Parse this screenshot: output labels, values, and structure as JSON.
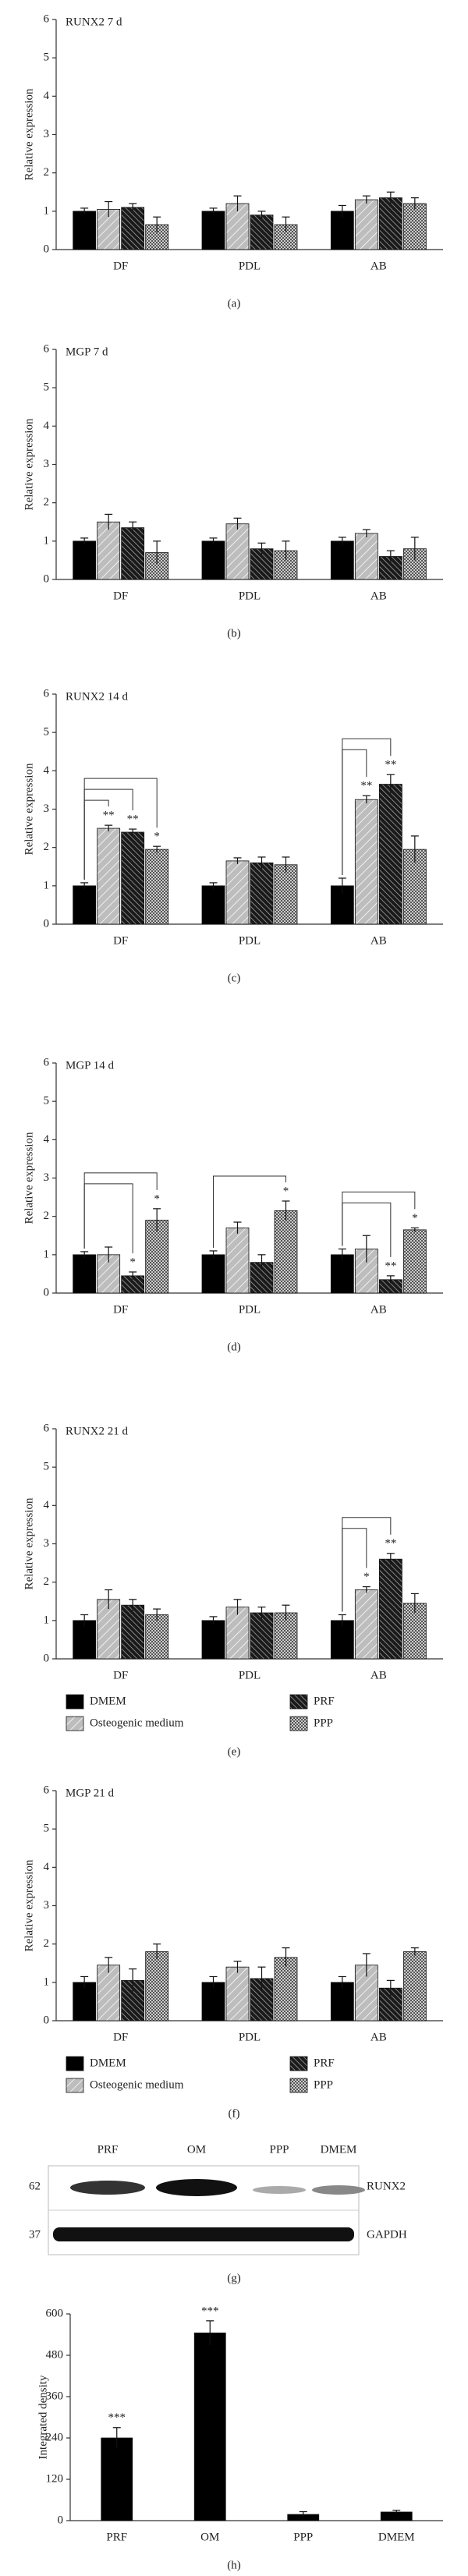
{
  "chart_data": [
    {
      "type": "bar",
      "title": "RUNX2 7 d",
      "y_label": "Relative expression",
      "panel_label": "(a)",
      "categories": [
        "DF",
        "PDL",
        "AB"
      ],
      "ylim": [
        0,
        6
      ],
      "yticks": [
        0,
        1,
        2,
        3,
        4,
        5,
        6
      ],
      "series": [
        {
          "color": "#000000",
          "pattern": "solid",
          "values": [
            1.0,
            1.0,
            1.0
          ],
          "errors": [
            0.08,
            0.08,
            0.15
          ]
        },
        {
          "color": "#bdbdbd",
          "pattern": "lines",
          "values": [
            1.05,
            1.2,
            1.3
          ],
          "errors": [
            0.2,
            0.2,
            0.1
          ]
        },
        {
          "color": "#3a3a3a",
          "pattern": "hatch",
          "values": [
            1.1,
            0.9,
            1.35
          ],
          "errors": [
            0.1,
            0.1,
            0.15
          ]
        },
        {
          "color": "#8a8a8a",
          "pattern": "dots",
          "values": [
            0.65,
            0.65,
            1.2
          ],
          "errors": [
            0.2,
            0.2,
            0.15
          ]
        }
      ]
    },
    {
      "type": "bar",
      "title": "MGP 7 d",
      "y_label": "Relative expression",
      "panel_label": "(b)",
      "categories": [
        "DF",
        "PDL",
        "AB"
      ],
      "ylim": [
        0,
        6
      ],
      "yticks": [
        0,
        1,
        2,
        3,
        4,
        5,
        6
      ],
      "series": [
        {
          "color": "#000000",
          "pattern": "solid",
          "values": [
            1.0,
            1.0,
            1.0
          ],
          "errors": [
            0.08,
            0.08,
            0.1
          ]
        },
        {
          "color": "#bdbdbd",
          "pattern": "lines",
          "values": [
            1.5,
            1.45,
            1.2
          ],
          "errors": [
            0.2,
            0.15,
            0.1
          ]
        },
        {
          "color": "#3a3a3a",
          "pattern": "hatch",
          "values": [
            1.35,
            0.8,
            0.6
          ],
          "errors": [
            0.15,
            0.15,
            0.15
          ]
        },
        {
          "color": "#8a8a8a",
          "pattern": "dots",
          "values": [
            0.7,
            0.75,
            0.8
          ],
          "errors": [
            0.3,
            0.25,
            0.3
          ]
        }
      ]
    },
    {
      "type": "bar",
      "title": "RUNX2 14 d",
      "y_label": "Relative expression",
      "panel_label": "(c)",
      "categories": [
        "DF",
        "PDL",
        "AB"
      ],
      "ylim": [
        0,
        6
      ],
      "yticks": [
        0,
        1,
        2,
        3,
        4,
        5,
        6
      ],
      "series": [
        {
          "color": "#000000",
          "pattern": "solid",
          "values": [
            1.0,
            1.0,
            1.0
          ],
          "errors": [
            0.08,
            0.08,
            0.2
          ]
        },
        {
          "color": "#bdbdbd",
          "pattern": "lines",
          "values": [
            2.5,
            1.65,
            3.25
          ],
          "errors": [
            0.08,
            0.08,
            0.1
          ]
        },
        {
          "color": "#3a3a3a",
          "pattern": "hatch",
          "values": [
            2.4,
            1.6,
            3.65
          ],
          "errors": [
            0.08,
            0.15,
            0.25
          ]
        },
        {
          "color": "#8a8a8a",
          "pattern": "dots",
          "values": [
            1.95,
            1.55,
            1.95
          ],
          "errors": [
            0.08,
            0.2,
            0.35
          ]
        }
      ],
      "marks": [
        [
          null,
          null,
          null
        ],
        [
          "**",
          null,
          "**"
        ],
        [
          "**",
          null,
          "**"
        ],
        [
          "*",
          null,
          null
        ]
      ]
    },
    {
      "type": "bar",
      "title": "MGP 14 d",
      "y_label": "Relative expression",
      "panel_label": "(d)",
      "categories": [
        "DF",
        "PDL",
        "AB"
      ],
      "ylim": [
        0,
        6
      ],
      "yticks": [
        0,
        1,
        2,
        3,
        4,
        5,
        6
      ],
      "series": [
        {
          "color": "#000000",
          "pattern": "solid",
          "values": [
            1.0,
            1.0,
            1.0
          ],
          "errors": [
            0.08,
            0.1,
            0.15
          ]
        },
        {
          "color": "#bdbdbd",
          "pattern": "lines",
          "values": [
            1.0,
            1.7,
            1.15
          ],
          "errors": [
            0.2,
            0.15,
            0.35
          ]
        },
        {
          "color": "#3a3a3a",
          "pattern": "hatch",
          "values": [
            0.45,
            0.8,
            0.35
          ],
          "errors": [
            0.1,
            0.2,
            0.1
          ]
        },
        {
          "color": "#8a8a8a",
          "pattern": "dots",
          "values": [
            1.9,
            2.15,
            1.65
          ],
          "errors": [
            0.3,
            0.25,
            0.05
          ]
        }
      ],
      "marks": [
        [
          null,
          null,
          null
        ],
        [
          null,
          null,
          null
        ],
        [
          "*",
          null,
          "**"
        ],
        [
          "*",
          "*",
          "*"
        ]
      ]
    },
    {
      "type": "bar",
      "title": "RUNX2 21 d",
      "y_label": "Relative expression",
      "panel_label": "(e)",
      "categories": [
        "DF",
        "PDL",
        "AB"
      ],
      "ylim": [
        0,
        6
      ],
      "yticks": [
        0,
        1,
        2,
        3,
        4,
        5,
        6
      ],
      "series": [
        {
          "name": "DMEM",
          "color": "#000000",
          "pattern": "solid",
          "values": [
            1.0,
            1.0,
            1.0
          ],
          "errors": [
            0.15,
            0.1,
            0.15
          ]
        },
        {
          "name": "Osteogenic medium",
          "color": "#bdbdbd",
          "pattern": "lines",
          "values": [
            1.55,
            1.35,
            1.8
          ],
          "errors": [
            0.25,
            0.2,
            0.08
          ]
        },
        {
          "name": "PRF",
          "color": "#3a3a3a",
          "pattern": "hatch",
          "values": [
            1.4,
            1.2,
            2.6
          ],
          "errors": [
            0.15,
            0.15,
            0.15
          ]
        },
        {
          "name": "PPP",
          "color": "#8a8a8a",
          "pattern": "dots",
          "values": [
            1.15,
            1.2,
            1.45
          ],
          "errors": [
            0.15,
            0.2,
            0.25
          ]
        }
      ],
      "marks": [
        [
          null,
          null,
          null
        ],
        [
          null,
          null,
          "*"
        ],
        [
          null,
          null,
          "**"
        ],
        [
          null,
          null,
          null
        ]
      ]
    },
    {
      "type": "bar",
      "title": "MGP 21 d",
      "y_label": "Relative expression",
      "panel_label": "(f)",
      "categories": [
        "DF",
        "PDL",
        "AB"
      ],
      "ylim": [
        0,
        6
      ],
      "yticks": [
        0,
        1,
        2,
        3,
        4,
        5,
        6
      ],
      "series": [
        {
          "name": "DMEM",
          "color": "#000000",
          "pattern": "solid",
          "values": [
            1.0,
            1.0,
            1.0
          ],
          "errors": [
            0.15,
            0.15,
            0.15
          ]
        },
        {
          "name": "Osteogenic medium",
          "color": "#bdbdbd",
          "pattern": "lines",
          "values": [
            1.45,
            1.4,
            1.45
          ],
          "errors": [
            0.2,
            0.15,
            0.3
          ]
        },
        {
          "name": "PRF",
          "color": "#3a3a3a",
          "pattern": "hatch",
          "values": [
            1.05,
            1.1,
            0.85
          ],
          "errors": [
            0.3,
            0.3,
            0.2
          ]
        },
        {
          "name": "PPP",
          "color": "#8a8a8a",
          "pattern": "dots",
          "values": [
            1.8,
            1.65,
            1.8
          ],
          "errors": [
            0.2,
            0.25,
            0.1
          ]
        }
      ]
    },
    {
      "type": "bar",
      "y_label": "Integrated density",
      "panel_label": "(h)",
      "categories": [
        "PRF",
        "OM",
        "PPP",
        "DMEM"
      ],
      "ylim": [
        0,
        600
      ],
      "yticks": [
        0,
        120,
        240,
        360,
        480,
        600
      ],
      "series": [
        {
          "color": "#000000",
          "pattern": "solid",
          "values": [
            240,
            545,
            18,
            25
          ],
          "errors": [
            30,
            35,
            8,
            5
          ]
        }
      ],
      "marks": [
        [
          "***",
          "***",
          null,
          null
        ]
      ]
    }
  ],
  "blot": {
    "lanes": [
      "PRF",
      "OM",
      "PPP",
      "DMEM"
    ],
    "rows": [
      {
        "size": "62",
        "protein": "RUNX2"
      },
      {
        "size": "37",
        "protein": "GAPDH"
      }
    ],
    "panel_label": "(g)"
  }
}
